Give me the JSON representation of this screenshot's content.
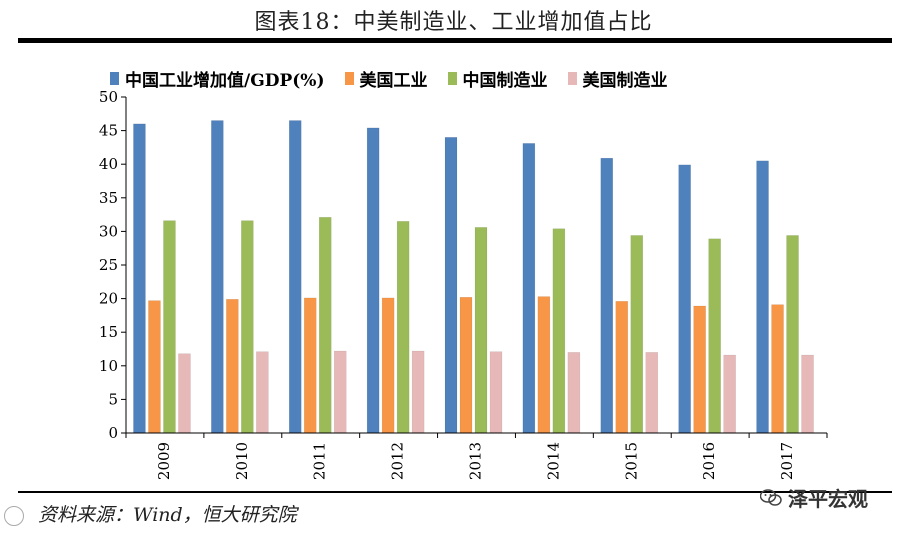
{
  "title": "图表18：中美制造业、工业增加值占比",
  "source": "资料来源：Wind，恒大研究院",
  "watermark": {
    "text": "泽平宏观",
    "icon": "wechat-icon"
  },
  "chart_data": {
    "type": "bar",
    "title": "图表18：中美制造业、工业增加值占比",
    "xlabel": "",
    "ylabel": "",
    "ylim": [
      0,
      50
    ],
    "yticks": [
      0,
      5,
      10,
      15,
      20,
      25,
      30,
      35,
      40,
      45,
      50
    ],
    "categories": [
      "2009",
      "2010",
      "2011",
      "2012",
      "2013",
      "2014",
      "2015",
      "2016",
      "2017"
    ],
    "legend_position": "top",
    "series": [
      {
        "name": "中国工业增加值/GDP(%)",
        "color": "#4f81bd",
        "values": [
          46.0,
          46.5,
          46.5,
          45.4,
          44.0,
          43.1,
          40.9,
          39.9,
          40.5
        ]
      },
      {
        "name": "美国工业",
        "color": "#f79646",
        "values": [
          19.7,
          19.9,
          20.1,
          20.1,
          20.2,
          20.3,
          19.6,
          18.9,
          19.1
        ]
      },
      {
        "name": "中国制造业",
        "color": "#9bbb59",
        "values": [
          31.6,
          31.6,
          32.1,
          31.5,
          30.6,
          30.4,
          29.4,
          28.9,
          29.4
        ]
      },
      {
        "name": "美国制造业",
        "color": "#e6b9b8",
        "values": [
          11.8,
          12.1,
          12.2,
          12.2,
          12.1,
          12.0,
          12.0,
          11.6,
          11.6
        ]
      }
    ]
  }
}
